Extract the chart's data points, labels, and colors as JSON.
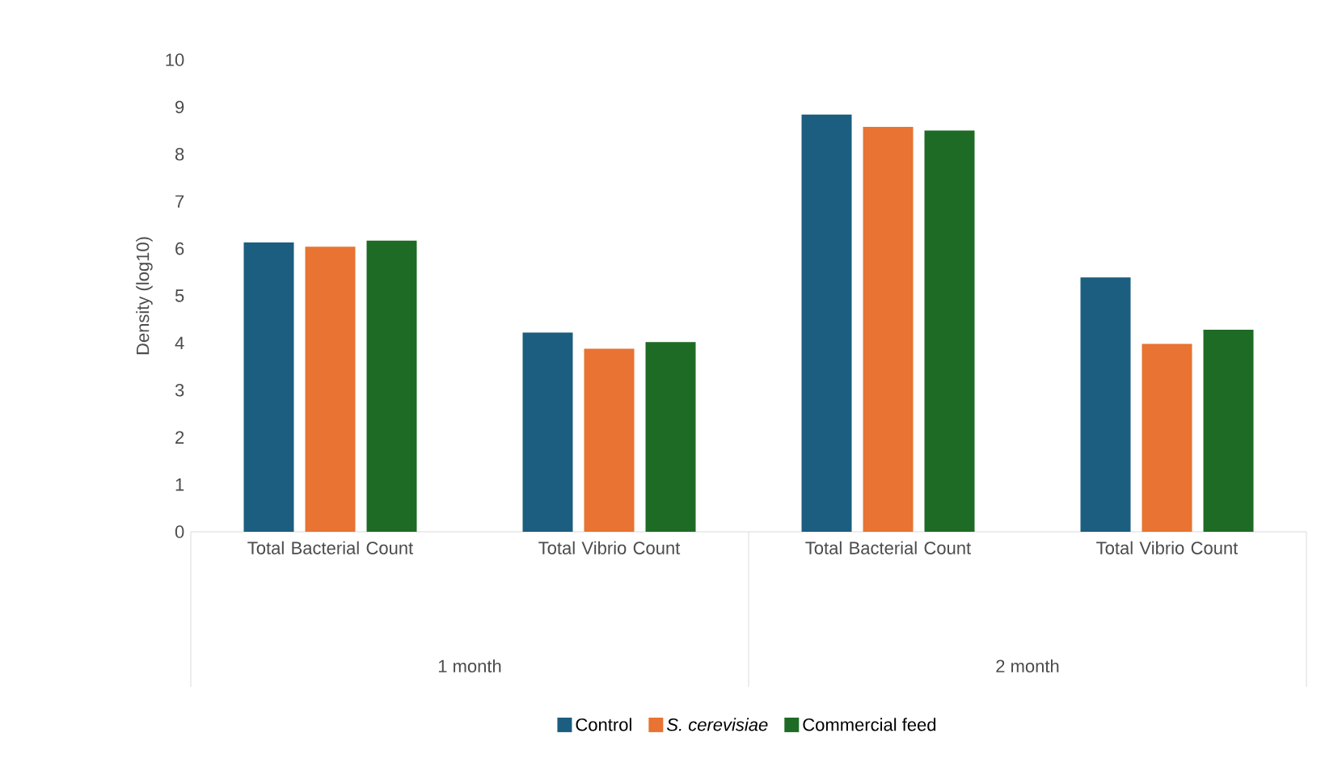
{
  "chart_data": {
    "type": "bar",
    "ylabel": "Density (log10)",
    "categories": [
      "Total Bacterial Count",
      "Total Vibrio Count",
      "Total Bacterial Count",
      "Total Vibrio Count"
    ],
    "series": [
      {
        "name": "Control",
        "color": "#1b5e80",
        "values": [
          6.13,
          4.22,
          8.84,
          5.39
        ]
      },
      {
        "name": "*S. cerevisiae*",
        "color": "#e87332",
        "values": [
          6.04,
          3.88,
          8.58,
          3.98
        ]
      },
      {
        "name": "Commercial feed",
        "color": "#1e6b25",
        "values": [
          6.17,
          4.02,
          8.5,
          4.28
        ]
      }
    ],
    "annotations": [
      "1 month",
      "2 month"
    ],
    "ylim": [
      0,
      10
    ],
    "yticks": [
      0,
      1,
      2,
      3,
      4,
      5,
      6,
      7,
      8,
      9,
      10
    ],
    "legend": "bottom"
  }
}
